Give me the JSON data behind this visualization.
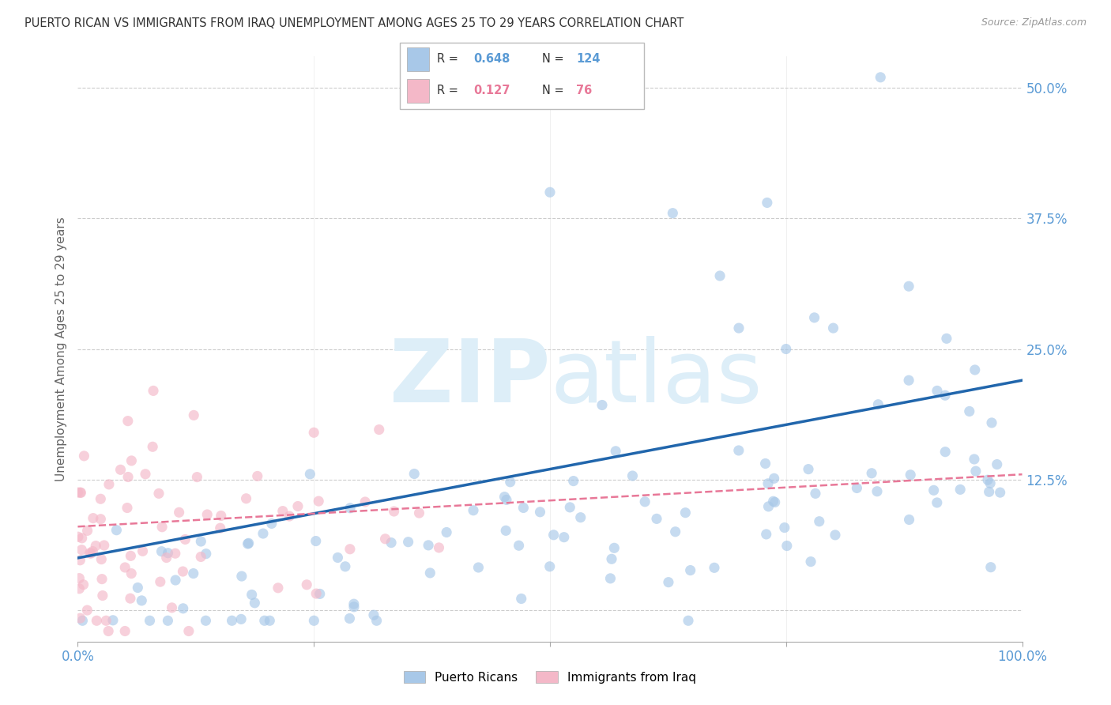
{
  "title": "PUERTO RICAN VS IMMIGRANTS FROM IRAQ UNEMPLOYMENT AMONG AGES 25 TO 29 YEARS CORRELATION CHART",
  "source": "Source: ZipAtlas.com",
  "ylabel": "Unemployment Among Ages 25 to 29 years",
  "xlim": [
    0,
    100
  ],
  "ylim": [
    -3,
    53
  ],
  "yticks": [
    0,
    12.5,
    25,
    37.5,
    50
  ],
  "ytick_labels": [
    "",
    "12.5%",
    "25.0%",
    "37.5%",
    "50.0%"
  ],
  "blue_color": "#a8c8e8",
  "pink_color": "#f4b8c8",
  "blue_line_color": "#2166ac",
  "pink_line_color": "#e87898",
  "blue_R": 0.648,
  "blue_N": 124,
  "pink_R": 0.127,
  "pink_N": 76,
  "watermark_zip": "ZIP",
  "watermark_atlas": "atlas",
  "watermark_color": "#ddeef8",
  "background_color": "#ffffff",
  "grid_color": "#cccccc",
  "title_color": "#333333",
  "axis_label_color": "#666666",
  "tick_color": "#5b9bd5",
  "legend_r_color": "#5b9bd5",
  "legend_n_color": "#5b9bd5",
  "legend_r_pink_color": "#e87898",
  "legend_n_pink_color": "#e87898",
  "seed": 7
}
